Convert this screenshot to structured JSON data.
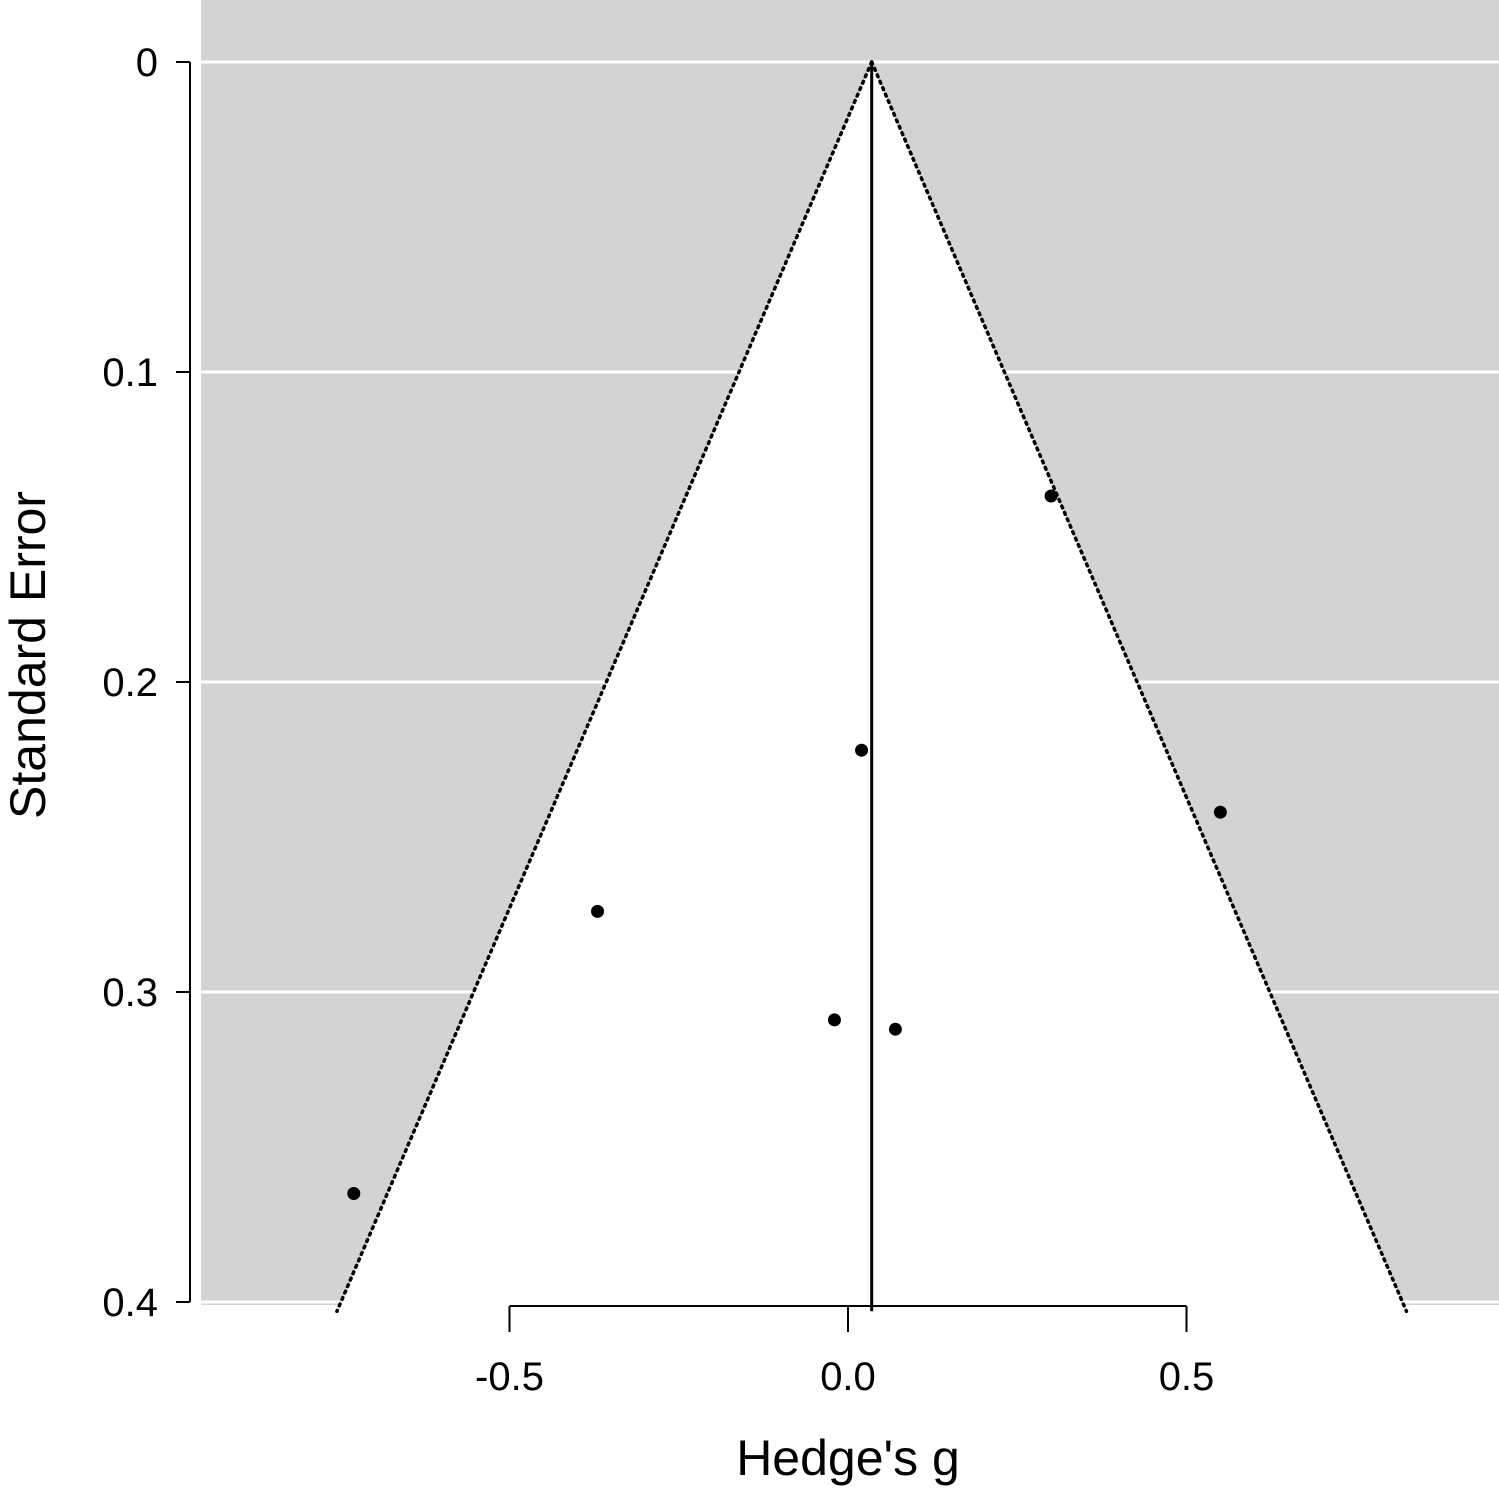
{
  "chart_data": {
    "type": "scatter",
    "subtype": "funnel-plot",
    "xlabel": "Hedge's g",
    "ylabel": "Standard Error",
    "xlim": [
      -0.99,
      0.96
    ],
    "ylim": [
      0.4,
      0
    ],
    "y_axis_reversed": true,
    "x_ticks": [
      -0.5,
      0.0,
      0.5
    ],
    "x_tick_labels": [
      "-0.5",
      "0.0",
      "0.5"
    ],
    "y_ticks": [
      0,
      0.1,
      0.2,
      0.3,
      0.4
    ],
    "y_tick_labels": [
      "0",
      "0.1",
      "0.2",
      "0.3",
      "0.4"
    ],
    "grid": "horizontal, white",
    "center_estimate": 0.035,
    "funnel_z": 1.96,
    "points": [
      {
        "x": 0.3,
        "y": 0.14
      },
      {
        "x": 0.02,
        "y": 0.222
      },
      {
        "x": 0.55,
        "y": 0.242
      },
      {
        "x": -0.37,
        "y": 0.274
      },
      {
        "x": -0.02,
        "y": 0.309
      },
      {
        "x": 0.07,
        "y": 0.312
      },
      {
        "x": -0.73,
        "y": 0.365
      }
    ],
    "colors": {
      "panel_background": "#d3d3d3",
      "funnel_fill": "#ffffff",
      "gridline": "#ffffff",
      "points": "#000000",
      "center_line": "#000000",
      "funnel_edges": "#000000"
    }
  }
}
